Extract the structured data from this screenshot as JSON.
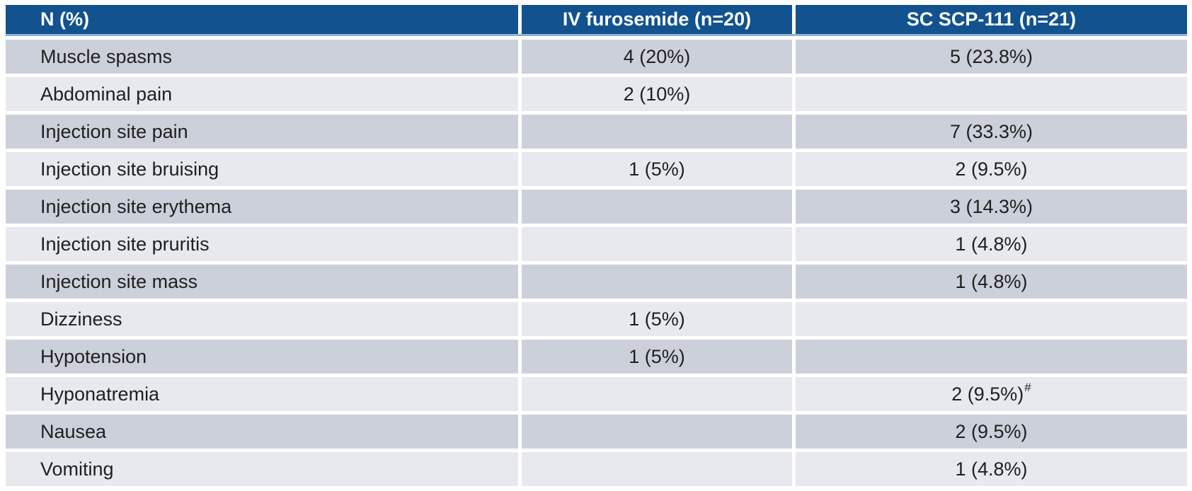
{
  "colors": {
    "header_bg": "#11528F",
    "header_text": "#FFFFFF",
    "header_underline": "#8FB4D9",
    "row_band_dark": "#CCD0DA",
    "row_band_light": "#E7E9EE",
    "body_text": "#1F1F1F",
    "page_bg": "#FFFFFF"
  },
  "table": {
    "header": {
      "col1": "N (%)",
      "col2": "IV furosemide (n=20)",
      "col3": "SC SCP-111 (n=21)"
    },
    "rows": [
      {
        "label": "Muscle spasms",
        "iv": "4 (20%)",
        "sc": "5 (23.8%)"
      },
      {
        "label": "Abdominal pain",
        "iv": "2 (10%)",
        "sc": ""
      },
      {
        "label": "Injection site pain",
        "iv": "",
        "sc": "7 (33.3%)"
      },
      {
        "label": "Injection site bruising",
        "iv": "1 (5%)",
        "sc": "2 (9.5%)"
      },
      {
        "label": "Injection site erythema",
        "iv": "",
        "sc": "3 (14.3%)"
      },
      {
        "label": "Injection site pruritis",
        "iv": "",
        "sc": "1 (4.8%)"
      },
      {
        "label": "Injection site mass",
        "iv": "",
        "sc": "1 (4.8%)"
      },
      {
        "label": "Dizziness",
        "iv": "1 (5%)",
        "sc": ""
      },
      {
        "label": "Hypotension",
        "iv": "1 (5%)",
        "sc": ""
      },
      {
        "label": "Hyponatremia",
        "iv": "",
        "sc": "2 (9.5%)",
        "sc_sup": "#"
      },
      {
        "label": "Nausea",
        "iv": "",
        "sc": "2 (9.5%)"
      },
      {
        "label": "Vomiting",
        "iv": "",
        "sc": "1 (4.8%)"
      }
    ]
  },
  "chart_data": {
    "type": "table",
    "title": "Adverse events, N (%): IV furosemide vs SC SCP-111",
    "columns": [
      "N (%)",
      "IV furosemide (n=20)",
      "SC SCP-111 (n=21)"
    ],
    "rows": [
      [
        "Muscle spasms",
        "4 (20%)",
        "5 (23.8%)"
      ],
      [
        "Abdominal pain",
        "2 (10%)",
        ""
      ],
      [
        "Injection site pain",
        "",
        "7 (33.3%)"
      ],
      [
        "Injection site bruising",
        "1 (5%)",
        "2 (9.5%)"
      ],
      [
        "Injection site erythema",
        "",
        "3 (14.3%)"
      ],
      [
        "Injection site pruritis",
        "",
        "1 (4.8%)"
      ],
      [
        "Injection site mass",
        "",
        "1 (4.8%)"
      ],
      [
        "Dizziness",
        "1 (5%)",
        ""
      ],
      [
        "Hypotension",
        "1 (5%)",
        ""
      ],
      [
        "Hyponatremia",
        "",
        "2 (9.5%)#"
      ],
      [
        "Nausea",
        "",
        "2 (9.5%)"
      ],
      [
        "Vomiting",
        "",
        "1 (4.8%)"
      ]
    ],
    "layout": {
      "banded_rows": true,
      "header_style": "dark-blue",
      "col1_align": "left",
      "value_columns_align": "center"
    }
  }
}
